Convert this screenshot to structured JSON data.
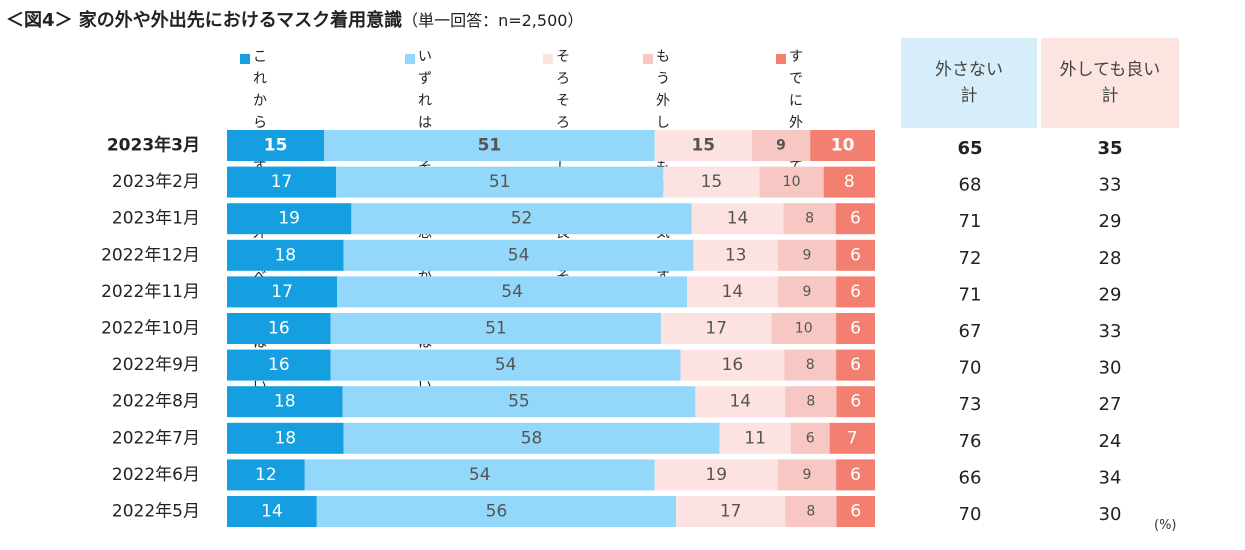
{
  "title": {
    "main": "＜図4＞ 家の外や外出先におけるマスク着用意識",
    "sub": "（単一回答：n=2,500）"
  },
  "unit": "(%)",
  "colors": {
    "s1": "#169FE0",
    "s2": "#93D8FA",
    "s3": "#FCE3E1",
    "s4": "#F7C8C3",
    "s5": "#F27F70",
    "head1": "#D6EEFA",
    "head2": "#FCE4E1",
    "dark_label": "#ffffff",
    "light_label": "#555555"
  },
  "summary_headers": [
    "外さない\n計",
    "外しても良い\n計"
  ],
  "chart_data": {
    "type": "bar",
    "orientation": "horizontal",
    "stacked": true,
    "normalized": true,
    "title": "＜図4＞ 家の外や外出先におけるマスク着用意識（単一回答：n=2,500）",
    "unit": "%",
    "categories": [
      "2023年3月",
      "2023年2月",
      "2023年1月",
      "2022年12月",
      "2022年11月",
      "2022年10月",
      "2022年9月",
      "2022年8月",
      "2022年7月",
      "2022年6月",
      "2022年5月"
    ],
    "highlight_category": "2023年3月",
    "series": [
      {
        "name": "これからもずっと\n外すべきではない",
        "values": [
          15,
          17,
          19,
          18,
          17,
          16,
          16,
          18,
          18,
          12,
          14
        ]
      },
      {
        "name": "いずれは\n外そうと思うが\n今ではない",
        "values": [
          51,
          51,
          52,
          54,
          54,
          51,
          54,
          55,
          58,
          54,
          56
        ]
      },
      {
        "name": "そろそろ\n外しても\n良さそう",
        "values": [
          15,
          15,
          14,
          13,
          14,
          17,
          16,
          14,
          11,
          19,
          17
        ]
      },
      {
        "name": "もう外しても\n良い気がする",
        "values": [
          9,
          10,
          8,
          9,
          9,
          10,
          8,
          8,
          6,
          9,
          8
        ]
      },
      {
        "name": "すでに\n外している",
        "values": [
          10,
          8,
          6,
          6,
          6,
          6,
          6,
          6,
          7,
          6,
          6
        ]
      }
    ],
    "totals": [
      {
        "name": "外さない計",
        "values": [
          65,
          68,
          71,
          72,
          71,
          67,
          70,
          73,
          76,
          66,
          70
        ]
      },
      {
        "name": "外しても良い計",
        "values": [
          35,
          33,
          29,
          28,
          29,
          33,
          30,
          27,
          24,
          34,
          30
        ]
      }
    ]
  }
}
